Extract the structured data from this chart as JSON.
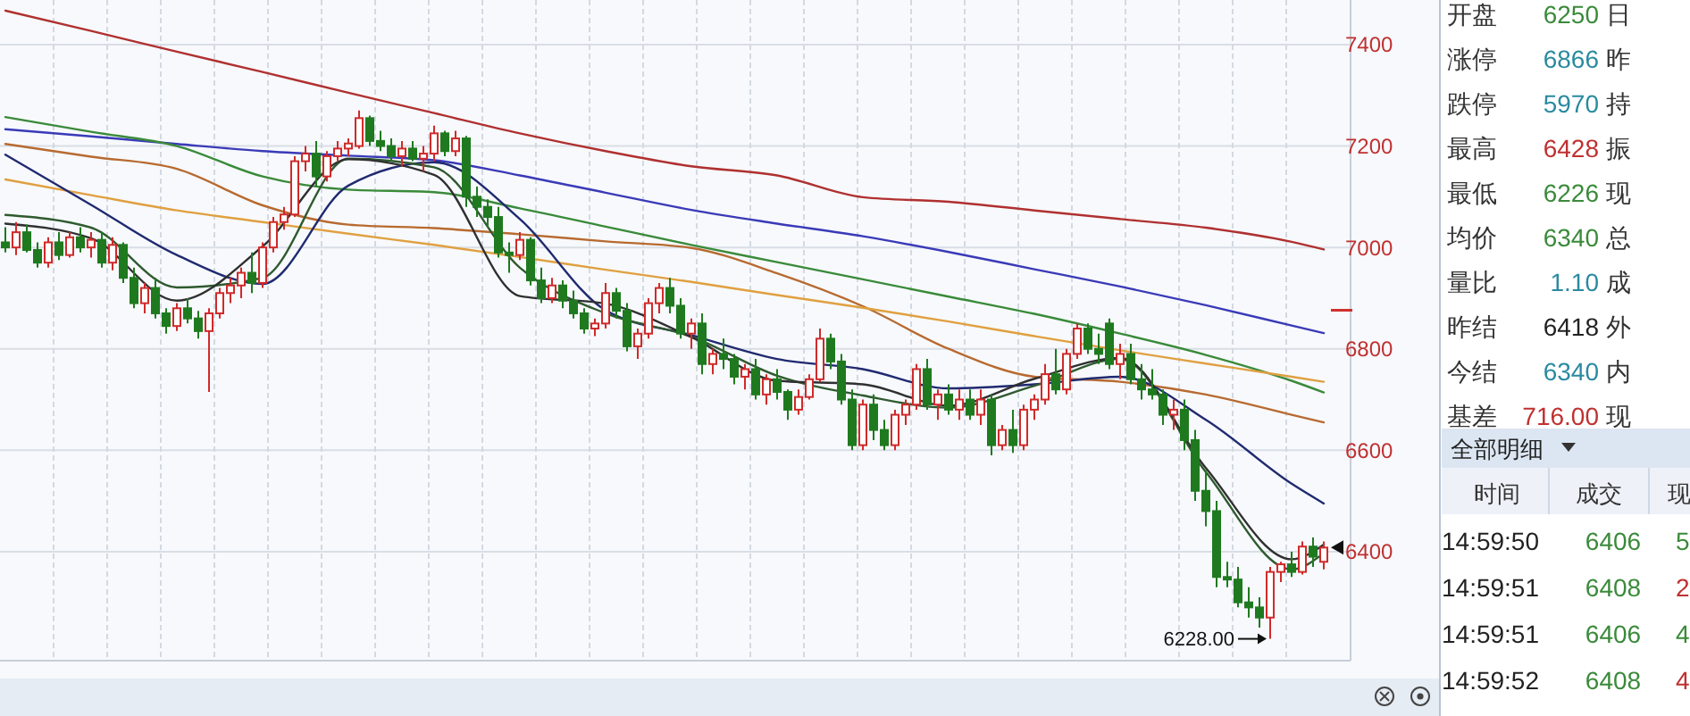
{
  "chart_data": [
    {
      "type": "candlestick",
      "tick_labels": "y",
      "grid": true,
      "ylim": [
        6185,
        7488
      ],
      "yticks": [
        6400,
        6600,
        6800,
        7000,
        7200,
        7400
      ],
      "categories": [
        null,
        null,
        null,
        null,
        null,
        null,
        null,
        null,
        null,
        null,
        null,
        null,
        null,
        null,
        null,
        null,
        null,
        null,
        null,
        null,
        null,
        null,
        null,
        null,
        null,
        null,
        null,
        null,
        null,
        null,
        null,
        null,
        null,
        null,
        null,
        null,
        null,
        null,
        null,
        null,
        null,
        null,
        null,
        null,
        null,
        null,
        null,
        null,
        null,
        null,
        null,
        null,
        null,
        null,
        null,
        null,
        null,
        null,
        null,
        null,
        null,
        null,
        null,
        null,
        null,
        null,
        null,
        null,
        null,
        null,
        null,
        null,
        null,
        null,
        null,
        null,
        null,
        null,
        null,
        null,
        null,
        null,
        null,
        null,
        null,
        null,
        null,
        null,
        null,
        null,
        null,
        null,
        null,
        null,
        null,
        null,
        null,
        null,
        null,
        null,
        null,
        null,
        null,
        null,
        null,
        null,
        null,
        null,
        null,
        null,
        null,
        null,
        null,
        null,
        null,
        null,
        null,
        null,
        null,
        null,
        null,
        null,
        null,
        null
      ],
      "ohlc": [
        [
          7010,
          7040,
          6990,
          7000
        ],
        [
          7000,
          7050,
          6985,
          7030
        ],
        [
          7030,
          7045,
          6990,
          6995
        ],
        [
          6995,
          7010,
          6960,
          6970
        ],
        [
          6970,
          7020,
          6960,
          7010
        ],
        [
          7010,
          7030,
          6975,
          6985
        ],
        [
          6985,
          7030,
          6980,
          7020
        ],
        [
          7020,
          7040,
          6990,
          7000
        ],
        [
          7000,
          7030,
          6980,
          7015
        ],
        [
          7015,
          7030,
          6960,
          6970
        ],
        [
          6970,
          7020,
          6955,
          7005
        ],
        [
          7005,
          7010,
          6930,
          6940
        ],
        [
          6940,
          6960,
          6880,
          6890
        ],
        [
          6890,
          6930,
          6870,
          6920
        ],
        [
          6920,
          6940,
          6860,
          6870
        ],
        [
          6870,
          6880,
          6830,
          6845
        ],
        [
          6845,
          6890,
          6835,
          6880
        ],
        [
          6880,
          6900,
          6850,
          6860
        ],
        [
          6860,
          6875,
          6820,
          6835
        ],
        [
          6835,
          6880,
          6715,
          6870
        ],
        [
          6870,
          6920,
          6860,
          6910
        ],
        [
          6910,
          6940,
          6890,
          6925
        ],
        [
          6925,
          6960,
          6900,
          6950
        ],
        [
          6950,
          6990,
          6910,
          6930
        ],
        [
          6930,
          7010,
          6920,
          7000
        ],
        [
          7000,
          7060,
          6990,
          7050
        ],
        [
          7050,
          7080,
          7035,
          7065
        ],
        [
          7065,
          7180,
          7060,
          7170
        ],
        [
          7170,
          7200,
          7150,
          7185
        ],
        [
          7185,
          7210,
          7120,
          7140
        ],
        [
          7140,
          7190,
          7130,
          7180
        ],
        [
          7180,
          7210,
          7170,
          7195
        ],
        [
          7195,
          7215,
          7180,
          7205
        ],
        [
          7200,
          7270,
          7195,
          7255
        ],
        [
          7255,
          7260,
          7200,
          7210
        ],
        [
          7210,
          7230,
          7190,
          7200
        ],
        [
          7200,
          7215,
          7170,
          7180
        ],
        [
          7180,
          7210,
          7160,
          7195
        ],
        [
          7195,
          7210,
          7170,
          7175
        ],
        [
          7175,
          7200,
          7150,
          7185
        ],
        [
          7185,
          7240,
          7170,
          7225
        ],
        [
          7225,
          7230,
          7180,
          7190
        ],
        [
          7190,
          7230,
          7180,
          7215
        ],
        [
          7215,
          7220,
          7080,
          7100
        ],
        [
          7100,
          7120,
          7060,
          7080
        ],
        [
          7080,
          7095,
          7040,
          7060
        ],
        [
          7060,
          7080,
          6980,
          6990
        ],
        [
          6990,
          7010,
          6950,
          6985
        ],
        [
          6985,
          7030,
          6975,
          7015
        ],
        [
          7015,
          7020,
          6925,
          6935
        ],
        [
          6935,
          6960,
          6890,
          6900
        ],
        [
          6900,
          6940,
          6890,
          6925
        ],
        [
          6925,
          6935,
          6880,
          6895
        ],
        [
          6895,
          6915,
          6860,
          6870
        ],
        [
          6870,
          6880,
          6830,
          6840
        ],
        [
          6840,
          6860,
          6825,
          6850
        ],
        [
          6850,
          6930,
          6840,
          6910
        ],
        [
          6910,
          6920,
          6860,
          6875
        ],
        [
          6875,
          6890,
          6795,
          6805
        ],
        [
          6805,
          6840,
          6780,
          6830
        ],
        [
          6830,
          6900,
          6820,
          6890
        ],
        [
          6890,
          6930,
          6870,
          6920
        ],
        [
          6920,
          6940,
          6870,
          6885
        ],
        [
          6885,
          6900,
          6820,
          6830
        ],
        [
          6830,
          6860,
          6800,
          6850
        ],
        [
          6850,
          6870,
          6750,
          6770
        ],
        [
          6770,
          6800,
          6750,
          6790
        ],
        [
          6790,
          6820,
          6760,
          6780
        ],
        [
          6780,
          6790,
          6730,
          6745
        ],
        [
          6745,
          6770,
          6720,
          6760
        ],
        [
          6760,
          6780,
          6700,
          6710
        ],
        [
          6710,
          6750,
          6690,
          6740
        ],
        [
          6740,
          6760,
          6700,
          6715
        ],
        [
          6715,
          6720,
          6660,
          6680
        ],
        [
          6680,
          6720,
          6670,
          6705
        ],
        [
          6705,
          6750,
          6700,
          6740
        ],
        [
          6740,
          6840,
          6735,
          6820
        ],
        [
          6820,
          6830,
          6760,
          6775
        ],
        [
          6775,
          6790,
          6690,
          6700
        ],
        [
          6700,
          6720,
          6600,
          6610
        ],
        [
          6610,
          6700,
          6600,
          6690
        ],
        [
          6690,
          6710,
          6620,
          6640
        ],
        [
          6640,
          6660,
          6600,
          6610
        ],
        [
          6610,
          6680,
          6600,
          6670
        ],
        [
          6670,
          6700,
          6650,
          6690
        ],
        [
          6690,
          6770,
          6680,
          6760
        ],
        [
          6760,
          6780,
          6680,
          6690
        ],
        [
          6690,
          6720,
          6660,
          6710
        ],
        [
          6710,
          6730,
          6670,
          6680
        ],
        [
          6680,
          6720,
          6660,
          6700
        ],
        [
          6700,
          6720,
          6660,
          6670
        ],
        [
          6670,
          6720,
          6650,
          6700
        ],
        [
          6700,
          6710,
          6590,
          6610
        ],
        [
          6610,
          6650,
          6600,
          6640
        ],
        [
          6640,
          6680,
          6595,
          6610
        ],
        [
          6610,
          6690,
          6600,
          6680
        ],
        [
          6680,
          6710,
          6660,
          6700
        ],
        [
          6700,
          6770,
          6690,
          6750
        ],
        [
          6750,
          6800,
          6710,
          6720
        ],
        [
          6720,
          6800,
          6710,
          6790
        ],
        [
          6790,
          6850,
          6780,
          6840
        ],
        [
          6840,
          6850,
          6790,
          6800
        ],
        [
          6800,
          6830,
          6770,
          6790
        ],
        [
          6850,
          6860,
          6760,
          6770
        ],
        [
          6770,
          6810,
          6740,
          6790
        ],
        [
          6790,
          6810,
          6730,
          6740
        ],
        [
          6740,
          6770,
          6700,
          6720
        ],
        [
          6720,
          6760,
          6700,
          6710
        ],
        [
          6710,
          6720,
          6650,
          6670
        ],
        [
          6670,
          6700,
          6640,
          6680
        ],
        [
          6680,
          6700,
          6600,
          6620
        ],
        [
          6620,
          6640,
          6500,
          6520
        ],
        [
          6520,
          6560,
          6450,
          6480
        ],
        [
          6480,
          6500,
          6330,
          6350
        ],
        [
          6350,
          6380,
          6330,
          6345
        ],
        [
          6345,
          6370,
          6290,
          6300
        ],
        [
          6300,
          6330,
          6270,
          6290
        ],
        [
          6290,
          6310,
          6250,
          6270
        ],
        [
          6270,
          6370,
          6228,
          6360
        ],
        [
          6360,
          6380,
          6340,
          6375
        ],
        [
          6375,
          6400,
          6350,
          6360
        ],
        [
          6360,
          6420,
          6355,
          6410
        ],
        [
          6410,
          6428,
          6370,
          6390
        ],
        [
          6380,
          6420,
          6365,
          6408
        ]
      ],
      "series": [
        {
          "type": "line",
          "color": "#b03030",
          "values": [
            7467,
            null,
            null,
            null,
            null,
            null,
            null,
            null,
            7427,
            null,
            null,
            null,
            null,
            null,
            null,
            null,
            7386,
            null,
            null,
            null,
            null,
            null,
            null,
            null,
            7346,
            null,
            null,
            null,
            null,
            null,
            null,
            null,
            7305,
            null,
            null,
            null,
            null,
            null,
            null,
            null,
            7265,
            null,
            null,
            null,
            null,
            null,
            null,
            null,
            7225,
            null,
            null,
            null,
            null,
            null,
            null,
            null,
            7190,
            null,
            null,
            null,
            null,
            null,
            null,
            null,
            7160,
            null,
            null,
            null,
            null,
            null,
            null,
            null,
            7142,
            null,
            null,
            null,
            null,
            null,
            null,
            null,
            7099,
            null,
            null,
            null,
            null,
            null,
            null,
            null,
            7090,
            null,
            null,
            null,
            null,
            null,
            null,
            null,
            7073,
            null,
            null,
            null,
            null,
            null,
            null,
            null,
            7056,
            null,
            null,
            null,
            null,
            null,
            null,
            null,
            7039,
            null,
            null,
            null,
            null,
            null,
            null,
            null,
            7011,
            null,
            null,
            6996
          ]
        },
        {
          "type": "line",
          "color": "#3a3ab8",
          "values": [
            7233,
            null,
            null,
            null,
            null,
            null,
            null,
            null,
            7219,
            null,
            null,
            null,
            null,
            null,
            null,
            null,
            7204,
            null,
            null,
            null,
            null,
            null,
            null,
            null,
            7190,
            null,
            null,
            null,
            null,
            null,
            null,
            null,
            7181,
            null,
            null,
            null,
            null,
            null,
            null,
            null,
            7172,
            null,
            null,
            null,
            null,
            null,
            null,
            null,
            7142,
            null,
            null,
            null,
            null,
            null,
            null,
            null,
            7108,
            null,
            null,
            null,
            null,
            null,
            null,
            null,
            7074,
            null,
            null,
            null,
            null,
            null,
            null,
            null,
            7047,
            null,
            null,
            null,
            null,
            null,
            null,
            null,
            7022,
            null,
            null,
            null,
            null,
            null,
            null,
            null,
            6991,
            null,
            null,
            null,
            null,
            null,
            null,
            null,
            6957,
            null,
            null,
            null,
            null,
            null,
            null,
            null,
            6923,
            null,
            null,
            null,
            null,
            null,
            null,
            null,
            6886,
            null,
            null,
            null,
            null,
            null,
            null,
            null,
            6846,
            null,
            null,
            6831
          ]
        },
        {
          "type": "line",
          "color": "#3a8a3a",
          "values": [
            7257,
            null,
            null,
            null,
            null,
            null,
            null,
            null,
            7228,
            null,
            null,
            null,
            null,
            null,
            null,
            null,
            7200,
            null,
            null,
            null,
            null,
            null,
            null,
            null,
            7140,
            null,
            null,
            null,
            null,
            null,
            null,
            null,
            7114,
            null,
            null,
            null,
            null,
            null,
            null,
            null,
            7109,
            null,
            null,
            null,
            null,
            null,
            null,
            null,
            7077,
            null,
            null,
            null,
            null,
            null,
            null,
            null,
            7041,
            null,
            null,
            null,
            null,
            null,
            null,
            null,
            7005,
            null,
            null,
            null,
            null,
            null,
            null,
            null,
            6971,
            null,
            null,
            null,
            null,
            null,
            null,
            null,
            6937,
            null,
            null,
            null,
            null,
            null,
            null,
            null,
            6903,
            null,
            null,
            null,
            null,
            null,
            null,
            null,
            6869,
            null,
            null,
            null,
            null,
            null,
            null,
            null,
            6830,
            null,
            null,
            null,
            null,
            null,
            null,
            null,
            6788,
            null,
            null,
            null,
            null,
            null,
            null,
            null,
            6737,
            null,
            null,
            6714
          ]
        },
        {
          "type": "line",
          "color": "#b86a30",
          "values": [
            7204,
            null,
            null,
            null,
            null,
            null,
            null,
            null,
            7179,
            null,
            null,
            null,
            null,
            null,
            null,
            null,
            7155,
            null,
            null,
            null,
            null,
            null,
            null,
            null,
            7083,
            null,
            null,
            null,
            null,
            null,
            null,
            null,
            7045,
            null,
            null,
            null,
            null,
            null,
            null,
            null,
            7038,
            null,
            null,
            null,
            null,
            null,
            null,
            null,
            7026,
            null,
            null,
            null,
            null,
            null,
            null,
            null,
            7012,
            null,
            null,
            null,
            null,
            null,
            null,
            null,
            6999,
            null,
            null,
            null,
            null,
            null,
            null,
            null,
            6949,
            null,
            null,
            null,
            null,
            null,
            null,
            null,
            6884,
            null,
            null,
            null,
            null,
            null,
            null,
            null,
            6800,
            null,
            null,
            null,
            null,
            null,
            null,
            null,
            6745,
            null,
            null,
            null,
            null,
            null,
            null,
            null,
            6735,
            null,
            null,
            null,
            null,
            null,
            null,
            null,
            6710,
            null,
            null,
            null,
            null,
            null,
            null,
            null,
            6670,
            null,
            null,
            6655
          ]
        },
        {
          "type": "line",
          "color": "#e0a040",
          "values": [
            7134,
            null,
            null,
            null,
            null,
            null,
            null,
            null,
            7103,
            null,
            null,
            null,
            null,
            null,
            null,
            null,
            7073,
            null,
            null,
            null,
            null,
            null,
            null,
            null,
            7050,
            null,
            null,
            null,
            null,
            null,
            null,
            null,
            7027,
            null,
            null,
            null,
            null,
            null,
            null,
            null,
            7005,
            null,
            null,
            null,
            null,
            null,
            null,
            null,
            6981,
            null,
            null,
            null,
            null,
            null,
            null,
            null,
            6956,
            null,
            null,
            null,
            null,
            null,
            null,
            null,
            6932,
            null,
            null,
            null,
            null,
            null,
            null,
            null,
            6906,
            null,
            null,
            null,
            null,
            null,
            null,
            null,
            6881,
            null,
            null,
            null,
            null,
            null,
            null,
            null,
            6854,
            null,
            null,
            null,
            null,
            null,
            null,
            null,
            6825,
            null,
            null,
            null,
            null,
            null,
            null,
            null,
            6797,
            null,
            null,
            null,
            null,
            null,
            null,
            null,
            6771,
            null,
            null,
            null,
            null,
            null,
            null,
            null,
            6745,
            null,
            null,
            6735
          ]
        },
        {
          "type": "line",
          "color": "#202a70",
          "values": [
            7183,
            null,
            null,
            null,
            null,
            null,
            null,
            null,
            7084,
            null,
            null,
            null,
            null,
            null,
            null,
            null,
            6985,
            null,
            null,
            null,
            null,
            null,
            null,
            null,
            6928,
            null,
            null,
            null,
            null,
            null,
            null,
            null,
            7122,
            null,
            null,
            null,
            null,
            null,
            null,
            null,
            7168,
            null,
            null,
            null,
            null,
            null,
            null,
            null,
            7056,
            null,
            null,
            null,
            null,
            null,
            null,
            null,
            6876,
            null,
            null,
            null,
            null,
            null,
            null,
            null,
            6827,
            null,
            null,
            null,
            null,
            null,
            null,
            null,
            6780,
            null,
            null,
            null,
            null,
            null,
            null,
            null,
            6760,
            null,
            null,
            null,
            null,
            null,
            null,
            null,
            6722,
            null,
            null,
            null,
            null,
            null,
            null,
            null,
            6730,
            null,
            null,
            null,
            null,
            null,
            null,
            null,
            6745,
            null,
            null,
            null,
            null,
            null,
            null,
            null,
            6660,
            null,
            null,
            null,
            null,
            null,
            null,
            null,
            6534,
            null,
            null,
            6495
          ]
        },
        {
          "type": "line",
          "color": "#2f5a2f",
          "values": [
            7064,
            null,
            null,
            null,
            null,
            null,
            null,
            null,
            7039,
            null,
            null,
            null,
            null,
            null,
            null,
            null,
            6921,
            null,
            null,
            null,
            null,
            null,
            null,
            null,
            6940,
            null,
            null,
            null,
            null,
            null,
            null,
            null,
            7175,
            null,
            null,
            null,
            null,
            null,
            null,
            null,
            7158,
            null,
            null,
            null,
            null,
            null,
            null,
            null,
            6960,
            null,
            null,
            null,
            null,
            null,
            null,
            null,
            6870,
            null,
            null,
            null,
            null,
            null,
            null,
            null,
            6824,
            null,
            null,
            null,
            null,
            null,
            null,
            null,
            6747,
            null,
            null,
            null,
            null,
            null,
            null,
            null,
            6708,
            null,
            null,
            null,
            null,
            null,
            null,
            null,
            6684,
            null,
            null,
            null,
            null,
            null,
            null,
            null,
            6727,
            null,
            null,
            null,
            null,
            null,
            null,
            null,
            6780,
            null,
            null,
            null,
            null,
            null,
            null,
            null,
            6557,
            null,
            null,
            null,
            null,
            null,
            null,
            null,
            6365,
            null,
            null,
            6397
          ]
        },
        {
          "type": "line",
          "color": "#303030",
          "values": [
            7047,
            null,
            null,
            null,
            null,
            null,
            null,
            null,
            7018,
            null,
            null,
            null,
            null,
            null,
            null,
            null,
            6895,
            null,
            null,
            null,
            null,
            null,
            null,
            null,
            7002,
            null,
            null,
            null,
            null,
            null,
            null,
            null,
            7174,
            null,
            null,
            null,
            null,
            null,
            null,
            null,
            7143,
            null,
            null,
            null,
            null,
            null,
            null,
            null,
            6904,
            null,
            null,
            null,
            null,
            null,
            null,
            null,
            6889,
            null,
            null,
            null,
            null,
            null,
            null,
            null,
            6823,
            null,
            null,
            null,
            null,
            null,
            null,
            null,
            6737,
            null,
            null,
            null,
            null,
            null,
            null,
            null,
            6730,
            null,
            null,
            null,
            null,
            null,
            null,
            null,
            6688,
            null,
            null,
            null,
            null,
            null,
            null,
            null,
            6741,
            null,
            null,
            null,
            null,
            null,
            null,
            null,
            6782,
            null,
            null,
            null,
            null,
            null,
            null,
            null,
            6565,
            null,
            null,
            null,
            null,
            null,
            null,
            null,
            6385,
            null,
            null,
            6414
          ]
        }
      ],
      "annotations": [
        "6228.00"
      ]
    },
    {
      "type": "other",
      "annotations": [
        "开盘",
        "6250",
        "日",
        "涨停",
        "6866",
        "昨",
        "跌停",
        "5970",
        "持",
        "最高",
        "6428",
        "振",
        "最低",
        "6226",
        "现",
        "均价",
        "6340",
        "总",
        "量比",
        "1.10",
        "成",
        "昨结",
        "6418",
        "外",
        "今结",
        "6340",
        "内",
        "基差",
        "716.00",
        "现",
        "全部明细",
        "时间",
        "成交",
        "现",
        "14:59:50",
        "6406",
        "5",
        "14:59:51",
        "6408",
        "2",
        "14:59:51",
        "6406",
        "4",
        "14:59:52",
        "6408",
        "4"
      ]
    }
  ]
}
